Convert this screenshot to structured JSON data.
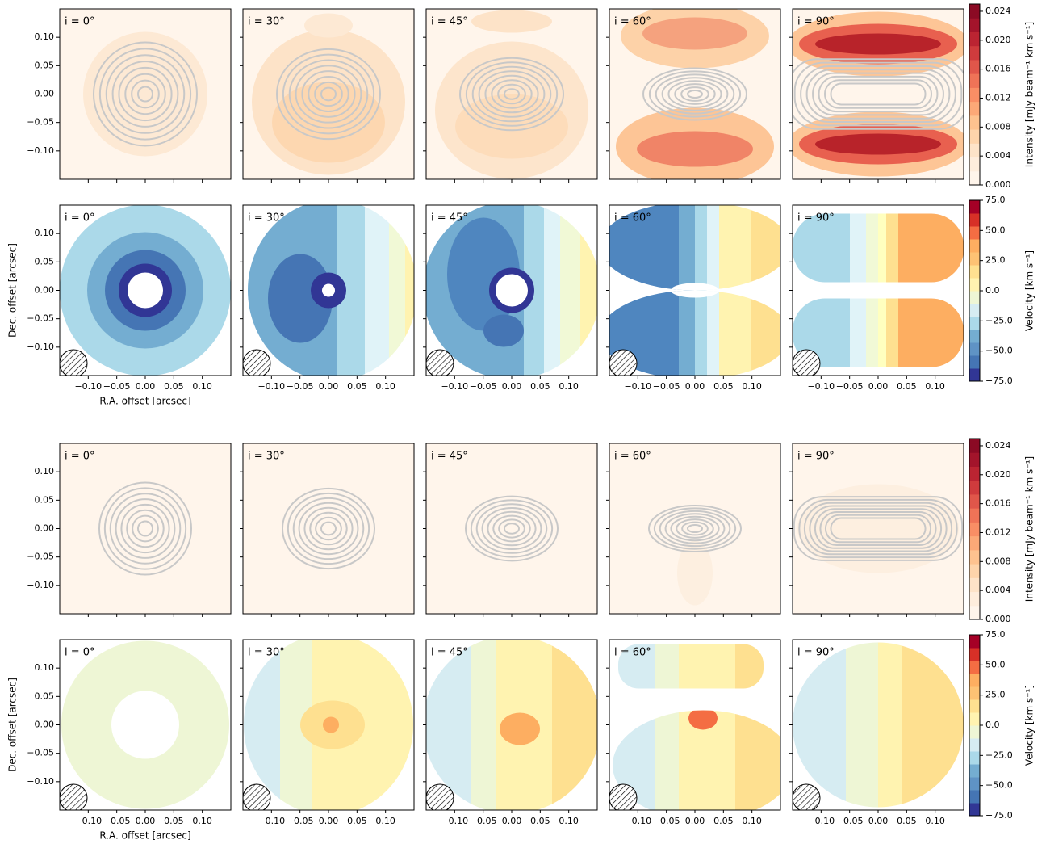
{
  "chart_data": [
    {
      "type": "intensity_map",
      "panel_labels": [
        "i = 0°",
        "i = 30°",
        "i = 45°",
        "i = 60°",
        "i = 90°"
      ],
      "xlim": [
        -0.15,
        0.15
      ],
      "ylim": [
        -0.15,
        0.15
      ],
      "xticks": [
        -0.1,
        -0.05,
        0,
        0.05,
        0.1
      ],
      "yticks": [
        {
          "value": 0.1,
          "label": "0.10"
        },
        {
          "value": 0.05,
          "label": "0.05"
        },
        {
          "value": 0,
          "label": "0.00"
        },
        {
          "value": -0.05,
          "label": "−0.05"
        },
        {
          "value": -0.1,
          "label": "−0.10"
        }
      ],
      "colorbar": {
        "label": "Intensity [mJy beam⁻¹ km s⁻¹]",
        "lim": [
          0,
          0.025
        ],
        "ticks": [
          {
            "value": 0,
            "label": "0.000"
          },
          {
            "value": 0.004,
            "label": "0.004"
          },
          {
            "value": 0.008,
            "label": "0.008"
          },
          {
            "value": 0.012,
            "label": "0.012"
          },
          {
            "value": 0.016,
            "label": "0.016"
          },
          {
            "value": 0.02,
            "label": "0.020"
          },
          {
            "value": 0.024,
            "label": "0.024"
          }
        ]
      }
    },
    {
      "type": "velocity_map",
      "panel_labels": [
        "i = 0°",
        "i = 30°",
        "i = 45°",
        "i = 60°",
        "i = 90°"
      ],
      "xlabel": "R.A. offset [arcsec]",
      "ylabel": "Dec. offset [arcsec]",
      "xlim": [
        -0.15,
        0.15
      ],
      "ylim": [
        -0.15,
        0.15
      ],
      "xticks": [
        {
          "value": -0.1,
          "label": "−0.10"
        },
        {
          "value": -0.05,
          "label": "−0.05"
        },
        {
          "value": 0,
          "label": "0.00"
        },
        {
          "value": 0.05,
          "label": "0.05"
        },
        {
          "value": 0.1,
          "label": "0.10"
        }
      ],
      "yticks": [
        {
          "value": 0.1,
          "label": "0.10"
        },
        {
          "value": 0.05,
          "label": "0.05"
        },
        {
          "value": 0,
          "label": "0.00"
        },
        {
          "value": -0.05,
          "label": "−0.05"
        },
        {
          "value": -0.1,
          "label": "−0.10"
        }
      ],
      "colorbar": {
        "label": "Velocity [km s⁻¹]",
        "lim": [
          -75,
          75
        ],
        "ticks": [
          {
            "value": 75,
            "label": "75.0"
          },
          {
            "value": 50,
            "label": "50.0"
          },
          {
            "value": 25,
            "label": "25.0"
          },
          {
            "value": 0,
            "label": "0.0"
          },
          {
            "value": -25,
            "label": "−25.0"
          },
          {
            "value": -50,
            "label": "−50.0"
          },
          {
            "value": -75,
            "label": "−75.0"
          }
        ]
      }
    },
    {
      "type": "intensity_map",
      "panel_labels": [
        "i = 0°",
        "i = 30°",
        "i = 45°",
        "i = 60°",
        "i = 90°"
      ],
      "xlim": [
        -0.15,
        0.15
      ],
      "ylim": [
        -0.15,
        0.15
      ],
      "xticks": [
        -0.1,
        -0.05,
        0,
        0.05,
        0.1
      ],
      "yticks": [
        {
          "value": 0.1,
          "label": "0.10"
        },
        {
          "value": 0.05,
          "label": "0.05"
        },
        {
          "value": 0,
          "label": "0.00"
        },
        {
          "value": -0.05,
          "label": "−0.05"
        },
        {
          "value": -0.1,
          "label": "−0.10"
        }
      ],
      "colorbar": {
        "label": "Intensity [mJy beam⁻¹ km s⁻¹]",
        "lim": [
          0,
          0.025
        ],
        "ticks": [
          {
            "value": 0,
            "label": "0.000"
          },
          {
            "value": 0.004,
            "label": "0.004"
          },
          {
            "value": 0.008,
            "label": "0.008"
          },
          {
            "value": 0.012,
            "label": "0.012"
          },
          {
            "value": 0.016,
            "label": "0.016"
          },
          {
            "value": 0.02,
            "label": "0.020"
          },
          {
            "value": 0.024,
            "label": "0.024"
          }
        ]
      }
    },
    {
      "type": "velocity_map",
      "panel_labels": [
        "i = 0°",
        "i = 30°",
        "i = 45°",
        "i = 60°",
        "i = 90°"
      ],
      "xlabel": "R.A. offset [arcsec]",
      "ylabel": "Dec. offset [arcsec]",
      "xlim": [
        -0.15,
        0.15
      ],
      "ylim": [
        -0.15,
        0.15
      ],
      "xticks": [
        {
          "value": -0.1,
          "label": "−0.10"
        },
        {
          "value": -0.05,
          "label": "−0.05"
        },
        {
          "value": 0,
          "label": "0.00"
        },
        {
          "value": 0.05,
          "label": "0.05"
        },
        {
          "value": 0.1,
          "label": "0.10"
        }
      ],
      "yticks": [
        {
          "value": 0.1,
          "label": "0.10"
        },
        {
          "value": 0.05,
          "label": "0.05"
        },
        {
          "value": 0,
          "label": "0.00"
        },
        {
          "value": -0.05,
          "label": "−0.05"
        },
        {
          "value": -0.1,
          "label": "−0.10"
        }
      ],
      "colorbar": {
        "label": "Velocity [km s⁻¹]",
        "lim": [
          -75,
          75
        ],
        "ticks": [
          {
            "value": 75,
            "label": "75.0"
          },
          {
            "value": 50,
            "label": "50.0"
          },
          {
            "value": 25,
            "label": "25.0"
          },
          {
            "value": 0,
            "label": "0.0"
          },
          {
            "value": -25,
            "label": "−25.0"
          },
          {
            "value": -50,
            "label": "−50.0"
          },
          {
            "value": -75,
            "label": "−75.0"
          }
        ]
      }
    }
  ]
}
